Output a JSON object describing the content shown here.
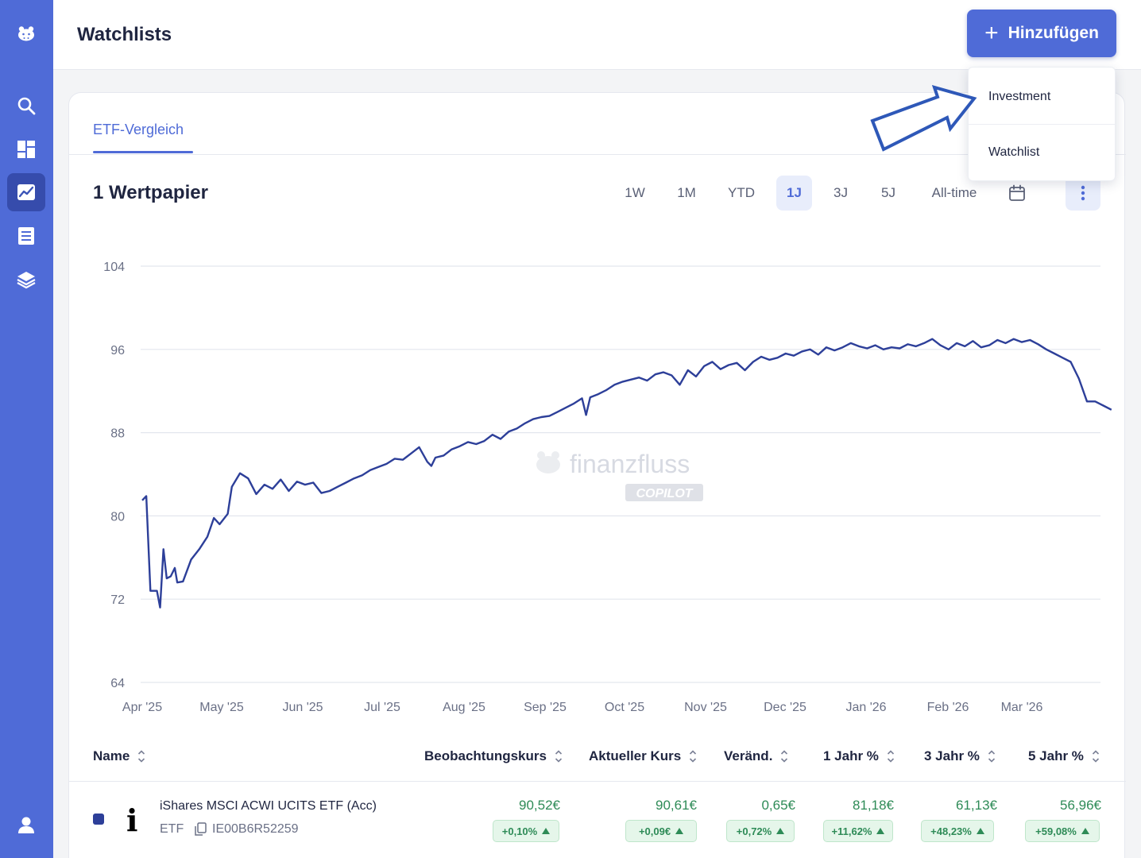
{
  "header": {
    "title": "Watchlists",
    "add_button": "Hinzufügen"
  },
  "dropdown": {
    "items": [
      "Investment",
      "Watchlist"
    ]
  },
  "tabs": [
    "ETF-Vergleich"
  ],
  "section_title": "1 Wertpapier",
  "ranges": {
    "items": [
      "1W",
      "1M",
      "YTD",
      "1J",
      "3J",
      "5J",
      "All-time"
    ],
    "selected": "1J"
  },
  "watermark": {
    "brand": "finanzfluss",
    "product": "COPILOT"
  },
  "chart_data": {
    "type": "line",
    "x_ticks": [
      "Apr '25",
      "May '25",
      "Jun '25",
      "Jul '25",
      "Aug '25",
      "Sep '25",
      "Oct '25",
      "Nov '25",
      "Dec '25",
      "Jan '26",
      "Feb '26",
      "Mar '26"
    ],
    "y_ticks": [
      64,
      72,
      80,
      88,
      96,
      104
    ],
    "ylim": [
      64,
      104
    ],
    "grid": true,
    "series": [
      {
        "color": "#2d3f99",
        "points": [
          [
            0.0,
            81.5
          ],
          [
            0.05,
            81.9
          ],
          [
            0.1,
            72.8
          ],
          [
            0.18,
            72.8
          ],
          [
            0.22,
            71.2
          ],
          [
            0.26,
            76.8
          ],
          [
            0.3,
            74.0
          ],
          [
            0.35,
            74.2
          ],
          [
            0.4,
            75.0
          ],
          [
            0.43,
            73.6
          ],
          [
            0.5,
            73.7
          ],
          [
            0.6,
            75.8
          ],
          [
            0.7,
            76.8
          ],
          [
            0.8,
            78.0
          ],
          [
            0.88,
            79.8
          ],
          [
            0.95,
            79.2
          ],
          [
            1.05,
            80.2
          ],
          [
            1.1,
            82.8
          ],
          [
            1.2,
            84.1
          ],
          [
            1.3,
            83.6
          ],
          [
            1.4,
            82.1
          ],
          [
            1.5,
            83.0
          ],
          [
            1.6,
            82.6
          ],
          [
            1.7,
            83.5
          ],
          [
            1.8,
            82.4
          ],
          [
            1.9,
            83.3
          ],
          [
            2.0,
            83.0
          ],
          [
            2.1,
            83.2
          ],
          [
            2.2,
            82.2
          ],
          [
            2.3,
            82.4
          ],
          [
            2.4,
            82.8
          ],
          [
            2.5,
            83.2
          ],
          [
            2.6,
            83.6
          ],
          [
            2.7,
            83.9
          ],
          [
            2.8,
            84.4
          ],
          [
            2.9,
            84.7
          ],
          [
            3.0,
            85.0
          ],
          [
            3.1,
            85.5
          ],
          [
            3.2,
            85.4
          ],
          [
            3.3,
            86.0
          ],
          [
            3.4,
            86.6
          ],
          [
            3.5,
            85.2
          ],
          [
            3.55,
            84.8
          ],
          [
            3.6,
            85.6
          ],
          [
            3.7,
            85.8
          ],
          [
            3.8,
            86.4
          ],
          [
            3.9,
            86.7
          ],
          [
            4.0,
            87.1
          ],
          [
            4.1,
            86.9
          ],
          [
            4.2,
            87.2
          ],
          [
            4.3,
            87.8
          ],
          [
            4.4,
            87.4
          ],
          [
            4.5,
            88.1
          ],
          [
            4.6,
            88.4
          ],
          [
            4.7,
            88.9
          ],
          [
            4.8,
            89.3
          ],
          [
            4.9,
            89.5
          ],
          [
            5.0,
            89.6
          ],
          [
            5.1,
            90.0
          ],
          [
            5.2,
            90.4
          ],
          [
            5.3,
            90.8
          ],
          [
            5.4,
            91.3
          ],
          [
            5.45,
            89.7
          ],
          [
            5.5,
            91.4
          ],
          [
            5.6,
            91.7
          ],
          [
            5.7,
            92.1
          ],
          [
            5.8,
            92.6
          ],
          [
            5.9,
            92.9
          ],
          [
            6.0,
            93.1
          ],
          [
            6.1,
            93.3
          ],
          [
            6.2,
            93.0
          ],
          [
            6.3,
            93.6
          ],
          [
            6.4,
            93.8
          ],
          [
            6.5,
            93.5
          ],
          [
            6.6,
            92.6
          ],
          [
            6.7,
            94.0
          ],
          [
            6.8,
            93.4
          ],
          [
            6.9,
            94.4
          ],
          [
            7.0,
            94.8
          ],
          [
            7.1,
            94.1
          ],
          [
            7.2,
            94.5
          ],
          [
            7.3,
            94.7
          ],
          [
            7.4,
            94.0
          ],
          [
            7.5,
            94.8
          ],
          [
            7.6,
            95.3
          ],
          [
            7.7,
            95.0
          ],
          [
            7.8,
            95.2
          ],
          [
            7.9,
            95.6
          ],
          [
            8.0,
            95.4
          ],
          [
            8.1,
            95.8
          ],
          [
            8.2,
            96.0
          ],
          [
            8.3,
            95.5
          ],
          [
            8.4,
            96.2
          ],
          [
            8.5,
            95.9
          ],
          [
            8.6,
            96.2
          ],
          [
            8.7,
            96.6
          ],
          [
            8.8,
            96.3
          ],
          [
            8.9,
            96.1
          ],
          [
            9.0,
            96.4
          ],
          [
            9.1,
            96.0
          ],
          [
            9.2,
            96.2
          ],
          [
            9.3,
            96.1
          ],
          [
            9.4,
            96.5
          ],
          [
            9.5,
            96.3
          ],
          [
            9.6,
            96.6
          ],
          [
            9.7,
            97.0
          ],
          [
            9.8,
            96.4
          ],
          [
            9.9,
            96.0
          ],
          [
            10.0,
            96.6
          ],
          [
            10.1,
            96.3
          ],
          [
            10.2,
            96.8
          ],
          [
            10.3,
            96.2
          ],
          [
            10.4,
            96.4
          ],
          [
            10.5,
            96.9
          ],
          [
            10.6,
            96.6
          ],
          [
            10.7,
            97.0
          ],
          [
            10.8,
            96.7
          ],
          [
            10.9,
            96.9
          ],
          [
            11.0,
            96.5
          ],
          [
            11.1,
            96.0
          ],
          [
            11.2,
            95.6
          ],
          [
            11.3,
            95.2
          ],
          [
            11.4,
            94.8
          ],
          [
            11.5,
            93.2
          ],
          [
            11.6,
            91.0
          ],
          [
            11.7,
            91.0
          ],
          [
            11.8,
            90.6
          ],
          [
            11.9,
            90.2
          ]
        ]
      }
    ]
  },
  "table": {
    "columns": [
      "Name",
      "Beobachtungskurs",
      "Aktueller Kurs",
      "Veränd.",
      "1 Jahr %",
      "3 Jahr %",
      "5 Jahr %"
    ],
    "rows": [
      {
        "name": "iShares MSCI ACWI UCITS ETF (Acc)",
        "logo_letter": "i",
        "type": "ETF",
        "isin": "IE00B6R52259",
        "beobachtungskurs": "90,52€",
        "beobachtungskurs_change": "+0,10%",
        "aktueller_kurs": "90,61€",
        "aktueller_kurs_change": "+0,09€",
        "veraend": "0,65€",
        "veraend_change": "+0,72%",
        "jahr1": "81,18€",
        "jahr1_change": "+11,62%",
        "jahr3": "61,13€",
        "jahr3_change": "+48,23%",
        "jahr5": "56,96€",
        "jahr5_change": "+59,08%"
      }
    ]
  },
  "colors": {
    "accent": "#4f6bd7",
    "series": "#2d3f99",
    "positive": "#2e8b57"
  }
}
